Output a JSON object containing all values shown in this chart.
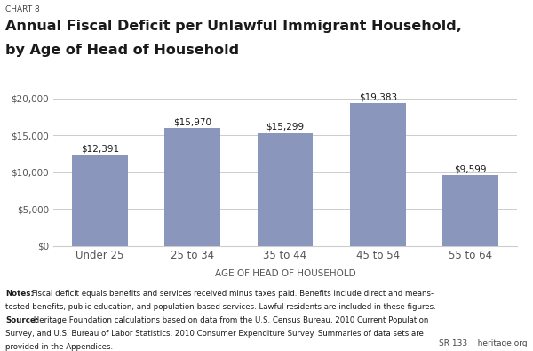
{
  "chart_label": "CHART 8",
  "title_line1": "Annual Fiscal Deficit per Unlawful Immigrant Household,",
  "title_line2": "by Age of Head of Household",
  "categories": [
    "Under 25",
    "25 to 34",
    "35 to 44",
    "45 to 54",
    "55 to 64"
  ],
  "values": [
    12391,
    15970,
    15299,
    19383,
    9599
  ],
  "labels": [
    "$12,391",
    "$15,970",
    "$15,299",
    "$19,383",
    "$9,599"
  ],
  "bar_color": "#8a96bc",
  "ylim": [
    0,
    20000
  ],
  "yticks": [
    0,
    5000,
    10000,
    15000,
    20000
  ],
  "ytick_labels": [
    "$0",
    "$5,000",
    "$10,000",
    "$15,000",
    "$20,000"
  ],
  "xlabel": "AGE OF HEAD OF HOUSEHOLD",
  "bg_color": "#ffffff",
  "grid_color": "#cccccc",
  "title_color": "#1a1a1a",
  "bar_label_color": "#1a1a1a",
  "axis_label_color": "#555555",
  "notes_color": "#1a1a1a",
  "sr_text": "SR 133    heritage.org",
  "notes_bold_1": "Notes:",
  "notes_rest_1": " Fiscal deficit equals benefits and services received minus taxes paid. Benefits include direct and means-",
  "notes_line_2": "tested benefits, public education, and population-based services. Lawful residents are included in these figures.",
  "notes_bold_3": "Source:",
  "notes_rest_3": " Heritage Foundation calculations based on data from the U.S. Census Bureau, 2010 Current Population",
  "notes_line_4": "Survey, and U.S. Bureau of Labor Statistics, 2010 Consumer Expenditure Survey. Summaries of data sets are",
  "notes_line_5": "provided in the Appendices."
}
